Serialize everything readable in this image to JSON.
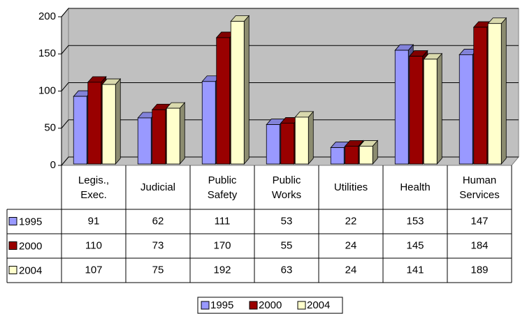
{
  "chart_data": {
    "type": "bar",
    "categories": [
      "Legis., Exec.",
      "Judicial",
      "Public Safety",
      "Public Works",
      "Utilities",
      "Health",
      "Human Services"
    ],
    "series": [
      {
        "name": "1995",
        "color": "#9999ff",
        "values": [
          91,
          62,
          111,
          53,
          22,
          153,
          147
        ]
      },
      {
        "name": "2000",
        "color": "#990000",
        "values": [
          110,
          73,
          170,
          55,
          24,
          145,
          184
        ]
      },
      {
        "name": "2004",
        "color": "#ffffcc",
        "values": [
          107,
          75,
          192,
          63,
          24,
          141,
          189
        ]
      }
    ],
    "ylim": [
      0,
      200
    ],
    "yticks": [
      0,
      50,
      100,
      150,
      200
    ],
    "grid": true,
    "data_table": true,
    "legend": "bottom"
  }
}
